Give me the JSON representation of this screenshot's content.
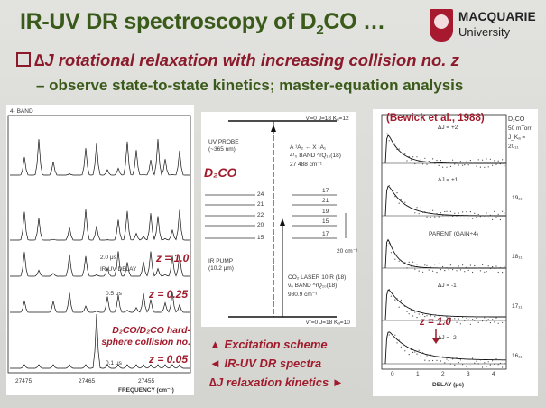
{
  "title": {
    "pre": "IR-UV DR spectroscopy of D",
    "sub": "2",
    "post": "CO …"
  },
  "logo": {
    "name": "MACQUARIE",
    "sub": "University"
  },
  "bullet1": {
    "delta": "∆J",
    "rest": " rotational relaxation with increasing collision no. ",
    "z": "z"
  },
  "bullet2": "– observe state-to-state kinetics; master-equation analysis",
  "left_panel": {
    "band": "4¹ BAND",
    "delays": [
      "2.0 μs",
      "0.5 μs",
      "0.1 μs"
    ],
    "delay_caption": "IR-UV DELAY",
    "z_labels": [
      "z = 1.0",
      "z = 0.25",
      "z = 0.05"
    ],
    "hard_sphere": [
      "D₂CO/D₂CO hard-",
      "sphere collision no."
    ],
    "ticks": [
      "27475",
      "27465",
      "27455"
    ],
    "xaxis": "FREQUENCY (cm⁻¹)"
  },
  "mid_panel": {
    "species": "D₂CO",
    "uv_probe": [
      "UV PROBE",
      "(~365 nm)"
    ],
    "band_text": [
      "Ã ¹A₂ ← X̃ ¹A₁",
      "4¹₀ BAND  ^rQ₁₀(18)",
      "27 488 cm⁻¹"
    ],
    "ir_pump": [
      "IR PUMP",
      "(10.2 μm)"
    ],
    "co2": [
      "CO₂ LASER 10 R (18)",
      "ν₆ BAND  ^rQ₁₀(18)",
      "980.9 cm⁻¹"
    ],
    "levels_left": [
      "24",
      "21",
      "22",
      "20",
      "15"
    ],
    "levels_right": [
      "17",
      "21",
      "19",
      "15",
      "17"
    ],
    "gap": "20 cm⁻¹",
    "state_top": "v'=0  J=18  Kₐ=12",
    "state_bot": "v''=0  J=18  Kₐ=10"
  },
  "captions": [
    "▲  Excitation scheme",
    "◄  IR-UV DR spectra",
    "∆J relaxation kinetics ►"
  ],
  "right_panel": {
    "ref": "(Bewick et al., 1988)",
    "species_info": [
      "D₂CO",
      "50 mTorr",
      "J_Kₐ =",
      "20₁₁"
    ],
    "traces": [
      {
        "label": "ΔJ = +2",
        "level": "20₁₁"
      },
      {
        "label": "ΔJ = +1",
        "level": "19₁₁"
      },
      {
        "label": "PARENT (GAIN÷4)",
        "level": "18₁₁"
      },
      {
        "label": "ΔJ = -1",
        "level": "17₁₁"
      },
      {
        "label": "ΔJ = -2",
        "level": "16₁₁"
      }
    ],
    "z_marker": "z = 1.0",
    "ticks": [
      "0",
      "1",
      "2",
      "3",
      "4"
    ],
    "xaxis": "DELAY (μs)"
  }
}
